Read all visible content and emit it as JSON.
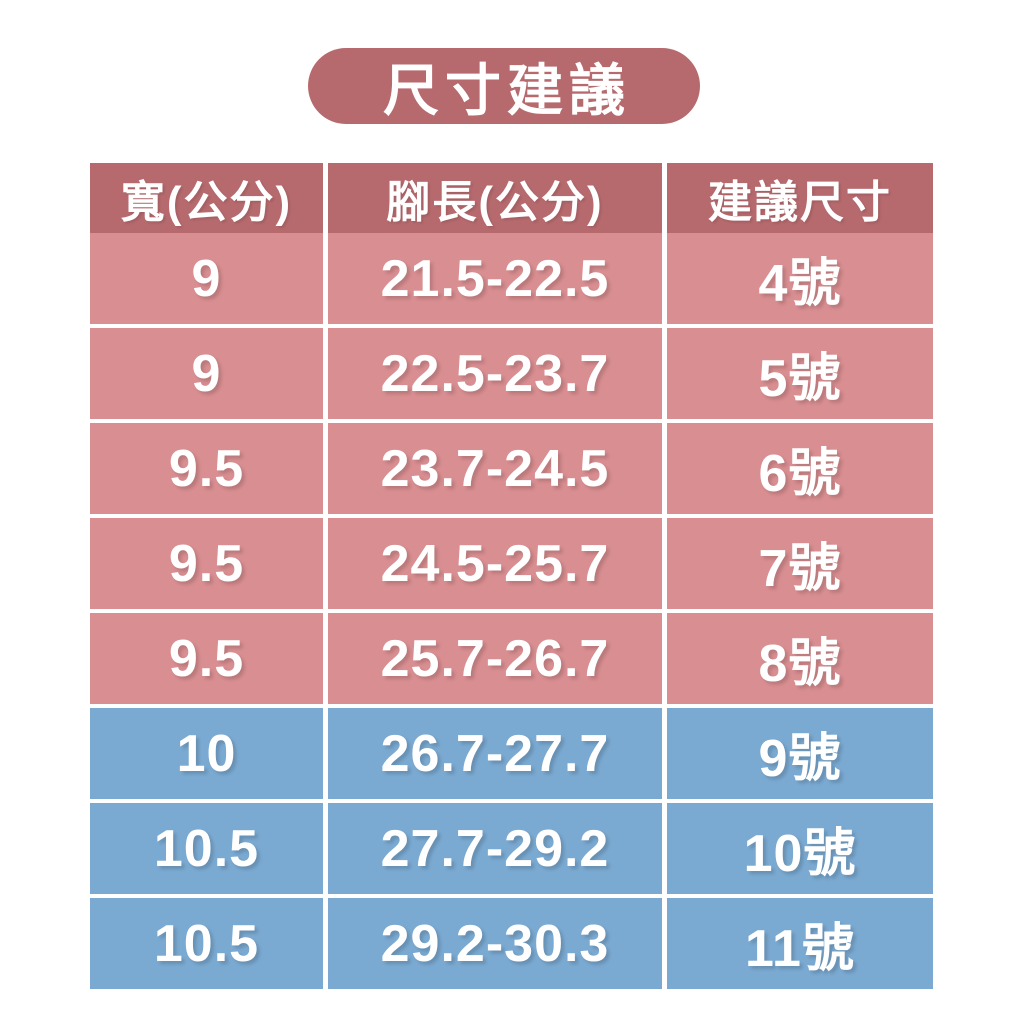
{
  "title": "尺寸建議",
  "colors": {
    "page_bg": "#ffffff",
    "title_bg": "#b66a6e",
    "header_bg": "#b66a6e",
    "row_pink": "#d98e91",
    "row_blue": "#7aa9d1",
    "text": "#ffffff"
  },
  "chart_data": {
    "type": "table",
    "title": "尺寸建議",
    "columns": [
      "寬(公分)",
      "腳長(公分)",
      "建議尺寸"
    ],
    "rows": [
      [
        "9",
        "21.5-22.5",
        "4號"
      ],
      [
        "9",
        "22.5-23.7",
        "5號"
      ],
      [
        "9.5",
        "23.7-24.5",
        "6號"
      ],
      [
        "9.5",
        "24.5-25.7",
        "7號"
      ],
      [
        "9.5",
        "25.7-26.7",
        "8號"
      ],
      [
        "10",
        "26.7-27.7",
        "9號"
      ],
      [
        "10.5",
        "27.7-29.2",
        "10號"
      ],
      [
        "10.5",
        "29.2-30.3",
        "11號"
      ]
    ],
    "row_colors": [
      "pink",
      "pink",
      "pink",
      "pink",
      "pink",
      "blue",
      "blue",
      "blue"
    ],
    "legend_position": "none",
    "grid": "white-separators"
  }
}
